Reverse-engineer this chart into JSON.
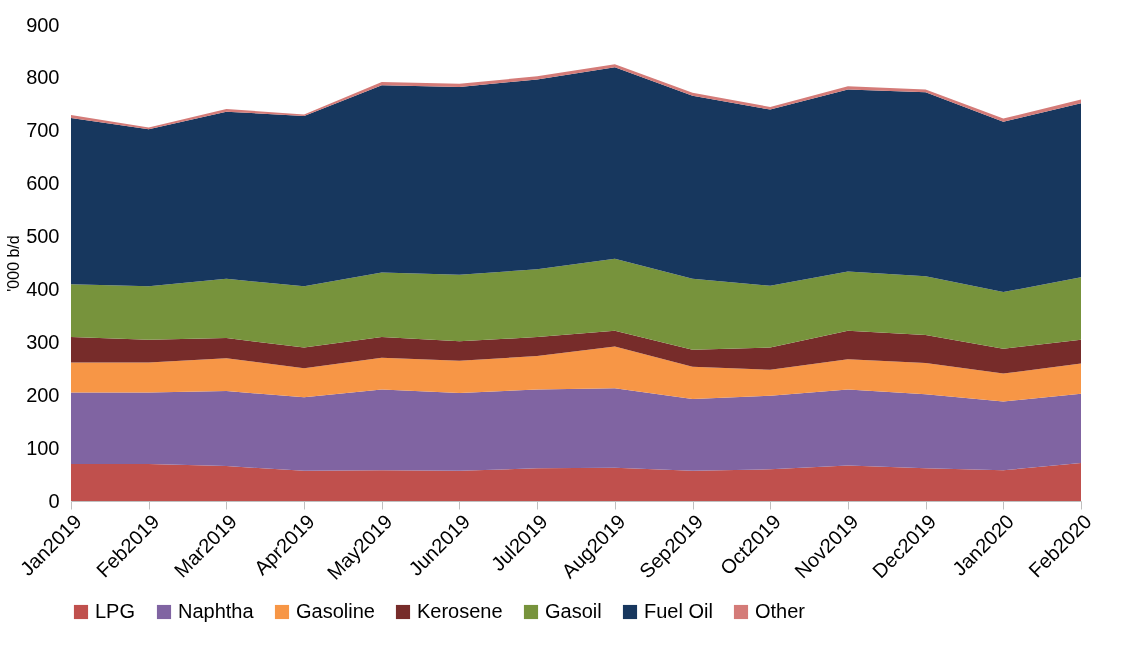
{
  "chart_data": {
    "type": "area",
    "stacked": true,
    "ylabel": "'000 b/d",
    "ylim": [
      0,
      900
    ],
    "yticks": [
      0,
      100,
      200,
      300,
      400,
      500,
      600,
      700,
      800,
      900
    ],
    "grid": false,
    "legend": "bottom",
    "categories": [
      "Jan2019",
      "Feb2019",
      "Mar2019",
      "Apr2019",
      "May2019",
      "Jun2019",
      "Jul2019",
      "Aug2019",
      "Sep2019",
      "Oct2019",
      "Nov2019",
      "Dec2019",
      "Jan2020",
      "Feb2020"
    ],
    "series": [
      {
        "name": "LPG",
        "color": "#c0504d",
        "values": [
          70,
          70,
          66,
          57,
          58,
          57,
          62,
          63,
          57,
          60,
          67,
          62,
          58,
          72
        ]
      },
      {
        "name": "Naphtha",
        "color": "#8064a2",
        "values": [
          135,
          135,
          142,
          139,
          153,
          147,
          149,
          150,
          136,
          139,
          144,
          140,
          130,
          131
        ]
      },
      {
        "name": "Gasoline",
        "color": "#f79646",
        "values": [
          57,
          57,
          62,
          55,
          60,
          61,
          63,
          79,
          61,
          49,
          57,
          59,
          53,
          57
        ]
      },
      {
        "name": "Kerosene",
        "color": "#772c2a",
        "values": [
          48,
          43,
          38,
          39,
          39,
          37,
          36,
          30,
          32,
          42,
          54,
          53,
          47,
          45
        ]
      },
      {
        "name": "Gasoil",
        "color": "#77933c",
        "values": [
          100,
          101,
          112,
          116,
          122,
          126,
          128,
          136,
          134,
          117,
          112,
          111,
          107,
          118
        ]
      },
      {
        "name": "Fuel Oil",
        "color": "#17375e",
        "values": [
          314,
          297,
          316,
          322,
          354,
          355,
          359,
          362,
          346,
          333,
          344,
          348,
          322,
          329
        ]
      },
      {
        "name": "Other",
        "color": "#d47b78",
        "values": [
          6,
          3,
          5,
          3,
          6,
          6,
          6,
          6,
          6,
          5,
          6,
          5,
          6,
          7
        ]
      }
    ]
  }
}
